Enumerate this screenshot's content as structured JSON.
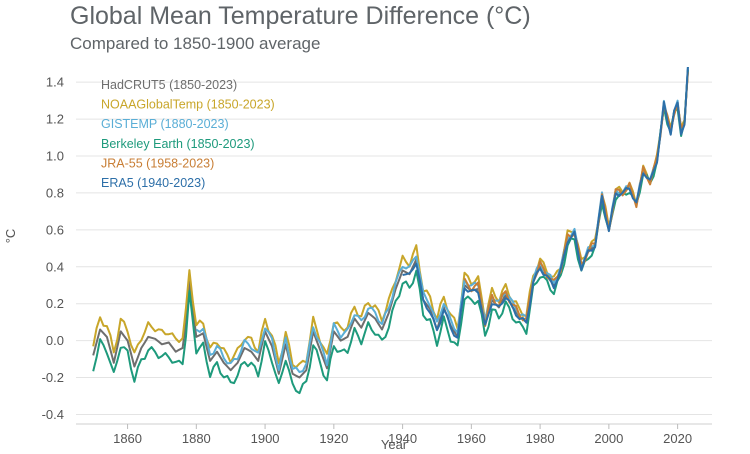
{
  "title": "Global Mean Temperature Difference (°C)",
  "subtitle": "Compared to 1850-1900 average",
  "chart_data": {
    "type": "line",
    "xlabel": "Year",
    "ylabel": "°C",
    "xlim": [
      1845,
      2030
    ],
    "ylim": [
      -0.43,
      1.52
    ],
    "xticks": [
      1860,
      1880,
      1900,
      1920,
      1940,
      1960,
      1980,
      2000,
      2020
    ],
    "yticks": [
      -0.4,
      -0.2,
      0.0,
      0.2,
      0.4,
      0.6,
      0.8,
      1.0,
      1.2,
      1.4
    ],
    "xtick_labels": [
      "1860",
      "1880",
      "1900",
      "1920",
      "1940",
      "1960",
      "1980",
      "2000",
      "2020"
    ],
    "ytick_labels": [
      "-0.4",
      "-0.2",
      "0.0",
      "0.2",
      "0.4",
      "0.6",
      "0.8",
      "1.0",
      "1.2",
      "1.4"
    ],
    "grid": true,
    "legend_position": "top-left",
    "base_series": {
      "x": [
        1850,
        1852,
        1854,
        1856,
        1858,
        1860,
        1862,
        1864,
        1866,
        1868,
        1870,
        1872,
        1874,
        1876,
        1877,
        1878,
        1880,
        1882,
        1884,
        1886,
        1888,
        1890,
        1892,
        1894,
        1896,
        1898,
        1900,
        1902,
        1904,
        1906,
        1908,
        1910,
        1912,
        1914,
        1916,
        1918,
        1920,
        1922,
        1924,
        1926,
        1928,
        1930,
        1932,
        1934,
        1936,
        1938,
        1940,
        1942,
        1944,
        1946,
        1948,
        1950,
        1952,
        1954,
        1956,
        1958,
        1960,
        1962,
        1964,
        1966,
        1968,
        1970,
        1972,
        1974,
        1976,
        1978,
        1980,
        1982,
        1984,
        1986,
        1988,
        1990,
        1992,
        1994,
        1996,
        1998,
        2000,
        2002,
        2004,
        2006,
        2008,
        2010,
        2012,
        2014,
        2015,
        2016,
        2017,
        2018,
        2019,
        2020,
        2021,
        2022,
        2023
      ],
      "y": [
        -0.08,
        0.06,
        0.02,
        -0.12,
        0.05,
        0.0,
        -0.14,
        -0.04,
        0.02,
        0.01,
        -0.02,
        -0.01,
        -0.06,
        -0.04,
        0.1,
        0.32,
        0.02,
        0.04,
        -0.11,
        -0.06,
        -0.12,
        -0.16,
        -0.12,
        -0.04,
        -0.06,
        -0.11,
        0.05,
        -0.03,
        -0.18,
        -0.02,
        -0.18,
        -0.2,
        -0.16,
        0.05,
        -0.05,
        -0.15,
        0.05,
        0.0,
        0.02,
        0.12,
        0.07,
        0.15,
        0.12,
        0.06,
        0.15,
        0.28,
        0.38,
        0.36,
        0.44,
        0.22,
        0.17,
        0.06,
        0.18,
        0.08,
        0.02,
        0.3,
        0.27,
        0.28,
        0.08,
        0.22,
        0.18,
        0.25,
        0.18,
        0.13,
        0.1,
        0.32,
        0.4,
        0.35,
        0.3,
        0.38,
        0.55,
        0.58,
        0.4,
        0.48,
        0.52,
        0.78,
        0.6,
        0.8,
        0.8,
        0.83,
        0.74,
        0.92,
        0.86,
        0.98,
        1.12,
        1.28,
        1.2,
        1.13,
        1.24,
        1.28,
        1.13,
        1.18,
        1.47
      ]
    },
    "series": [
      {
        "name": "HadCRUT5 (1850-2023)",
        "color": "#6e6e6e",
        "start": 1850,
        "offset": 0.0,
        "wiggle": 0.0
      },
      {
        "name": "NOAAGlobalTemp (1850-2023)",
        "color": "#c8a62a",
        "start": 1850,
        "offset": 0.06,
        "wiggle": 0.02
      },
      {
        "name": "GISTEMP (1880-2023)",
        "color": "#5aaed6",
        "start": 1880,
        "offset": 0.03,
        "wiggle": 0.015
      },
      {
        "name": "Berkeley Earth (1850-2023)",
        "color": "#1e9a7c",
        "start": 1850,
        "offset": -0.07,
        "wiggle": 0.02
      },
      {
        "name": "JRA-55 (1958-2023)",
        "color": "#c87e35",
        "start": 1958,
        "offset": 0.02,
        "wiggle": 0.02
      },
      {
        "name": "ERA5 (1940-2023)",
        "color": "#2d6fa8",
        "start": 1940,
        "offset": -0.01,
        "wiggle": 0.015
      }
    ]
  }
}
